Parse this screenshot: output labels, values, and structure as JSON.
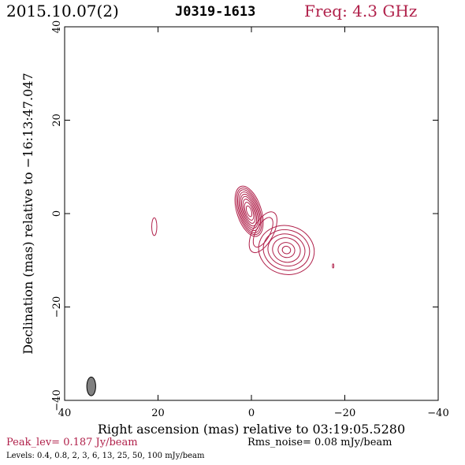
{
  "header": {
    "date": "2015.10.07(2)",
    "source": "J0319-1613",
    "freq": "Freq: 4.3 GHz"
  },
  "footer": {
    "peak": "Peak_lev=  0.187 Jy/beam",
    "rms": "Rms_noise= 0.08 mJy/beam",
    "levels": "Levels: 0.4,  0.8,    2,    3,    6,   13,   25,   50,  100 mJy/beam"
  },
  "colors": {
    "contour": "#b0204a",
    "beam_fill": "#808080",
    "header_freq": "#b0204a"
  },
  "chart_data": {
    "type": "contour",
    "xlabel": "Right ascension (mas) relative to 03:19:05.5280",
    "ylabel": "Declination (mas) relative to −16:13:47.047",
    "xlim": [
      40,
      -40
    ],
    "ylim": [
      -40,
      40
    ],
    "xticks": [
      40,
      20,
      0,
      -20,
      -40
    ],
    "xtick_labels": [
      "40",
      "20",
      "0",
      "−20",
      "−40"
    ],
    "yticks": [
      -40,
      -20,
      0,
      20,
      40
    ],
    "ytick_labels": [
      "−40",
      "−20",
      "0",
      "20",
      "40"
    ],
    "contour_levels_mjy": [
      0.4,
      0.8,
      2,
      3,
      6,
      13,
      25,
      50,
      100
    ],
    "components": [
      {
        "name": "core",
        "x": 0.5,
        "y": 0.5,
        "rx": [
          2.6,
          2.3,
          2.05,
          1.8,
          1.55,
          1.3,
          1.05,
          0.8,
          0.5
        ],
        "ry": [
          5.6,
          5.2,
          4.8,
          4.3,
          3.8,
          3.3,
          2.7,
          2.0,
          1.2
        ],
        "angle": -18
      },
      {
        "name": "bridge",
        "x": -2.5,
        "y": -4.0,
        "rx": [
          2.2,
          1.5
        ],
        "ry": [
          4.8,
          3.5
        ],
        "angle": 28
      },
      {
        "name": "jet-knot",
        "x": -7.5,
        "y": -7.8,
        "rx": [
          6.0,
          5.0,
          4.0,
          3.0,
          1.8,
          0.9
        ],
        "ry": [
          5.2,
          4.3,
          3.4,
          2.6,
          1.6,
          0.8
        ],
        "angle": 15
      },
      {
        "name": "east-feature",
        "x": 20.8,
        "y": -2.8,
        "rx": [
          0.55
        ],
        "ry": [
          1.9
        ],
        "angle": 0
      },
      {
        "name": "west-dot",
        "x": -17.5,
        "y": -11.2,
        "rx": [
          0.15
        ],
        "ry": [
          0.45
        ],
        "angle": 0
      }
    ],
    "beam": {
      "x": 34.3,
      "y": -37.0,
      "major": 4.0,
      "minor": 1.9,
      "pa": 0
    }
  }
}
